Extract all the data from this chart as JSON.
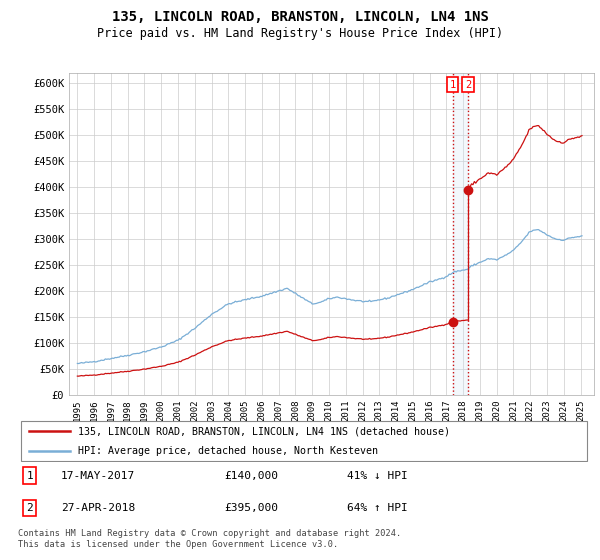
{
  "title": "135, LINCOLN ROAD, BRANSTON, LINCOLN, LN4 1NS",
  "subtitle": "Price paid vs. HM Land Registry's House Price Index (HPI)",
  "legend_line1": "135, LINCOLN ROAD, BRANSTON, LINCOLN, LN4 1NS (detached house)",
  "legend_line2": "HPI: Average price, detached house, North Kesteven",
  "footer": "Contains HM Land Registry data © Crown copyright and database right 2024.\nThis data is licensed under the Open Government Licence v3.0.",
  "table_row1": [
    "1",
    "17-MAY-2017",
    "£140,000",
    "41% ↓ HPI"
  ],
  "table_row2": [
    "2",
    "27-APR-2018",
    "£395,000",
    "64% ↑ HPI"
  ],
  "hpi_color": "#7aaed6",
  "price_color": "#cc1111",
  "marker_color": "#cc1111",
  "dashed_color": "#cc1111",
  "background_color": "#ffffff",
  "grid_color": "#cccccc",
  "ylim": [
    0,
    620000
  ],
  "yticks": [
    0,
    50000,
    100000,
    150000,
    200000,
    250000,
    300000,
    350000,
    400000,
    450000,
    500000,
    550000,
    600000
  ],
  "ytick_labels": [
    "£0",
    "£50K",
    "£100K",
    "£150K",
    "£200K",
    "£250K",
    "£300K",
    "£350K",
    "£400K",
    "£450K",
    "£500K",
    "£550K",
    "£600K"
  ],
  "sale1_year": 2017.37,
  "sale1_price": 140000,
  "sale2_year": 2018.29,
  "sale2_price": 395000,
  "xlabel_years": [
    1995,
    1996,
    1997,
    1998,
    1999,
    2000,
    2001,
    2002,
    2003,
    2004,
    2005,
    2006,
    2007,
    2008,
    2009,
    2010,
    2011,
    2012,
    2013,
    2014,
    2015,
    2016,
    2017,
    2018,
    2019,
    2020,
    2021,
    2022,
    2023,
    2024,
    2025
  ],
  "xlim": [
    1994.5,
    2025.8
  ],
  "shade_color": "#d0e4f7"
}
